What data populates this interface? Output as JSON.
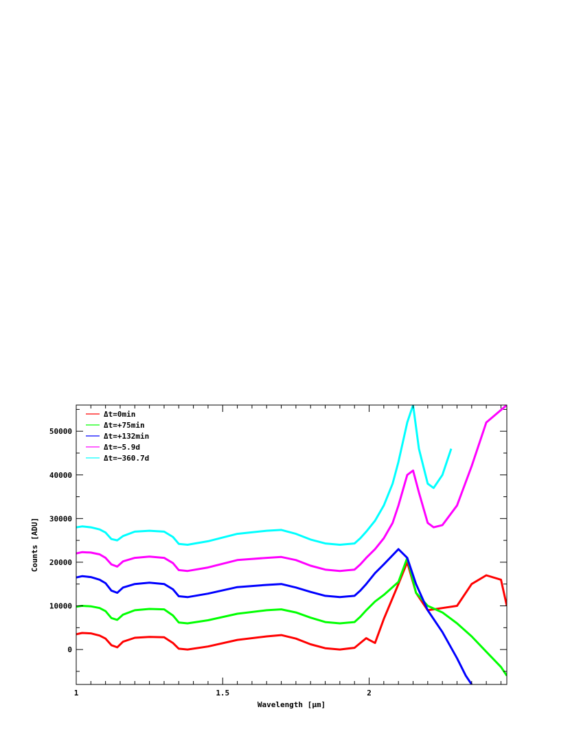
{
  "chart_data": {
    "type": "line",
    "title": "",
    "xlabel": "Wavelength [μm]",
    "ylabel": "Counts [ADU]",
    "xlim": [
      1.0,
      2.47
    ],
    "ylim": [
      -8000,
      56000
    ],
    "x_ticks": [
      1,
      1.5,
      2
    ],
    "x_tick_labels": [
      "1",
      "1.5",
      "2"
    ],
    "y_ticks": [
      0,
      10000,
      20000,
      30000,
      40000,
      50000
    ],
    "y_tick_labels": [
      "0",
      "10000",
      "20000",
      "30000",
      "40000",
      "50000"
    ],
    "grid": false,
    "legend_position": "top-left",
    "series": [
      {
        "name": "Δt=0min",
        "color": "#ff0000",
        "x": [
          1.0,
          1.02,
          1.05,
          1.08,
          1.1,
          1.12,
          1.14,
          1.16,
          1.2,
          1.25,
          1.3,
          1.33,
          1.35,
          1.38,
          1.45,
          1.55,
          1.65,
          1.7,
          1.75,
          1.8,
          1.85,
          1.9,
          1.95,
          1.97,
          1.99,
          2.0,
          2.02,
          2.05,
          2.1,
          2.13,
          2.16,
          2.2,
          2.25,
          2.3,
          2.35,
          2.4,
          2.45,
          2.47
        ],
        "y": [
          3500,
          3800,
          3700,
          3200,
          2500,
          1000,
          500,
          1800,
          2700,
          2900,
          2800,
          1500,
          200,
          0,
          700,
          2200,
          3000,
          3300,
          2500,
          1200,
          300,
          0,
          400,
          1500,
          2600,
          2200,
          1500,
          7000,
          15000,
          20000,
          13000,
          9000,
          9500,
          10000,
          15000,
          17000,
          16000,
          10000
        ]
      },
      {
        "name": "Δt=+75min",
        "color": "#00ff00",
        "x": [
          1.0,
          1.02,
          1.05,
          1.08,
          1.1,
          1.12,
          1.14,
          1.16,
          1.2,
          1.25,
          1.3,
          1.33,
          1.35,
          1.38,
          1.45,
          1.55,
          1.65,
          1.7,
          1.75,
          1.8,
          1.85,
          1.9,
          1.95,
          1.97,
          1.99,
          2.02,
          2.05,
          2.1,
          2.13,
          2.16,
          2.2,
          2.25,
          2.3,
          2.35,
          2.4,
          2.45,
          2.47
        ],
        "y": [
          9800,
          10000,
          9900,
          9500,
          8800,
          7200,
          6800,
          8000,
          9000,
          9300,
          9200,
          7800,
          6200,
          6000,
          6700,
          8200,
          9000,
          9200,
          8500,
          7300,
          6300,
          6000,
          6300,
          7500,
          9000,
          11000,
          12500,
          15500,
          21000,
          13000,
          10000,
          8500,
          6000,
          3000,
          -500,
          -4000,
          -6000
        ]
      },
      {
        "name": "Δt=+132min",
        "color": "#0000ff",
        "x": [
          1.0,
          1.02,
          1.05,
          1.08,
          1.1,
          1.12,
          1.14,
          1.16,
          1.2,
          1.25,
          1.3,
          1.33,
          1.35,
          1.38,
          1.45,
          1.55,
          1.65,
          1.7,
          1.75,
          1.8,
          1.85,
          1.9,
          1.95,
          1.97,
          1.99,
          2.02,
          2.05,
          2.1,
          2.13,
          2.16,
          2.2,
          2.25,
          2.3,
          2.33,
          2.35
        ],
        "y": [
          16500,
          16800,
          16600,
          16000,
          15200,
          13500,
          13000,
          14200,
          15000,
          15300,
          15000,
          13800,
          12200,
          12000,
          12800,
          14300,
          14800,
          15000,
          14200,
          13200,
          12300,
          12000,
          12300,
          13500,
          15000,
          17500,
          19500,
          23000,
          21000,
          15000,
          9000,
          4000,
          -2000,
          -6000,
          -8000
        ]
      },
      {
        "name": "Δt=−5.9d",
        "color": "#ff00ff",
        "x": [
          1.0,
          1.02,
          1.05,
          1.08,
          1.1,
          1.12,
          1.14,
          1.16,
          1.2,
          1.25,
          1.3,
          1.33,
          1.35,
          1.38,
          1.45,
          1.55,
          1.65,
          1.7,
          1.75,
          1.8,
          1.85,
          1.9,
          1.95,
          1.97,
          1.99,
          2.02,
          2.05,
          2.08,
          2.1,
          2.13,
          2.15,
          2.17,
          2.2,
          2.22,
          2.25,
          2.3,
          2.35,
          2.4,
          2.47
        ],
        "y": [
          22000,
          22300,
          22200,
          21800,
          21000,
          19500,
          19000,
          20200,
          21000,
          21300,
          21000,
          19800,
          18200,
          18000,
          18800,
          20500,
          21000,
          21200,
          20500,
          19200,
          18300,
          18000,
          18300,
          19500,
          21000,
          23000,
          25500,
          29000,
          33000,
          40000,
          41000,
          36000,
          29000,
          28000,
          28500,
          33000,
          42000,
          52000,
          56000
        ]
      },
      {
        "name": "Δt=−360.7d",
        "color": "#00ffff",
        "x": [
          1.0,
          1.02,
          1.05,
          1.08,
          1.1,
          1.12,
          1.14,
          1.16,
          1.2,
          1.25,
          1.3,
          1.33,
          1.35,
          1.38,
          1.45,
          1.55,
          1.65,
          1.7,
          1.75,
          1.8,
          1.85,
          1.9,
          1.95,
          1.97,
          1.99,
          2.02,
          2.05,
          2.08,
          2.1,
          2.13,
          2.15,
          2.17,
          2.2,
          2.22,
          2.25,
          2.28
        ],
        "y": [
          28000,
          28200,
          28000,
          27500,
          26800,
          25300,
          25000,
          26000,
          27000,
          27200,
          27000,
          25800,
          24200,
          24000,
          24800,
          26500,
          27200,
          27400,
          26500,
          25200,
          24300,
          24000,
          24300,
          25500,
          27000,
          29500,
          33000,
          38000,
          43000,
          52000,
          56000,
          46000,
          38000,
          37000,
          40000,
          46000
        ]
      }
    ]
  }
}
